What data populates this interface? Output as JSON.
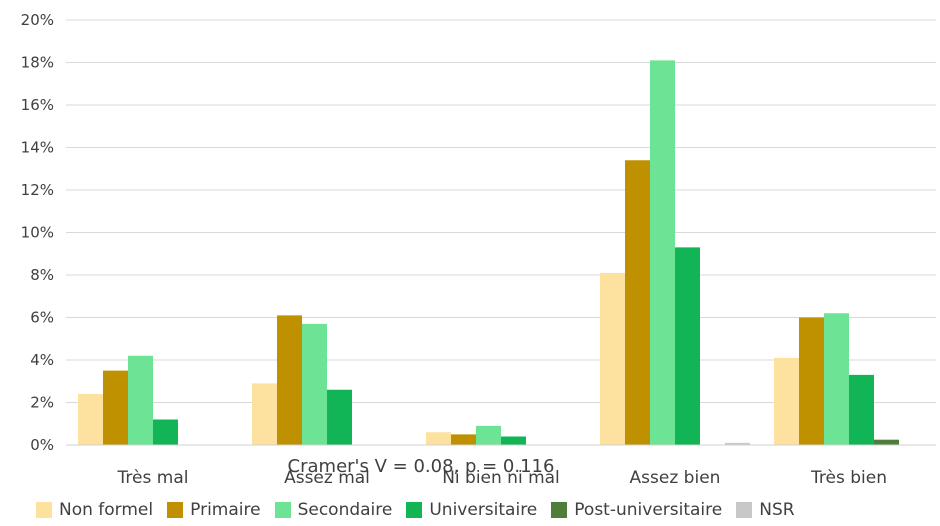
{
  "chart_data": {
    "type": "bar",
    "title": "",
    "xlabel": "",
    "ylabel": "",
    "ylim": [
      0,
      20
    ],
    "y_ticks": [
      "0%",
      "2%",
      "4%",
      "6%",
      "8%",
      "10%",
      "12%",
      "14%",
      "16%",
      "18%",
      "20%"
    ],
    "grid": true,
    "legend_position": "bottom",
    "categories": [
      "Très mal",
      "Assez mal",
      "Ni bien ni mal",
      "Assez bien",
      "Très bien"
    ],
    "annotation": "Cramer's V = 0.08, p = 0.116",
    "series": [
      {
        "name": "Non formel",
        "color": "#fce29e",
        "values": [
          2.4,
          2.9,
          0.6,
          8.1,
          4.1
        ]
      },
      {
        "name": "Primaire",
        "color": "#bf9000",
        "values": [
          3.5,
          6.1,
          0.5,
          13.4,
          6.0
        ]
      },
      {
        "name": "Secondaire",
        "color": "#6de495",
        "values": [
          4.2,
          5.7,
          0.9,
          18.1,
          6.2
        ]
      },
      {
        "name": "Universitaire",
        "color": "#11b555",
        "values": [
          1.2,
          2.6,
          0.4,
          9.3,
          3.3
        ]
      },
      {
        "name": "Post-universitaire",
        "color": "#4f7e3a",
        "values": [
          0,
          0,
          0,
          0,
          0.25
        ]
      },
      {
        "name": "NSR",
        "color": "#c8c8c8",
        "values": [
          0,
          0,
          0,
          0.1,
          0
        ]
      }
    ]
  }
}
